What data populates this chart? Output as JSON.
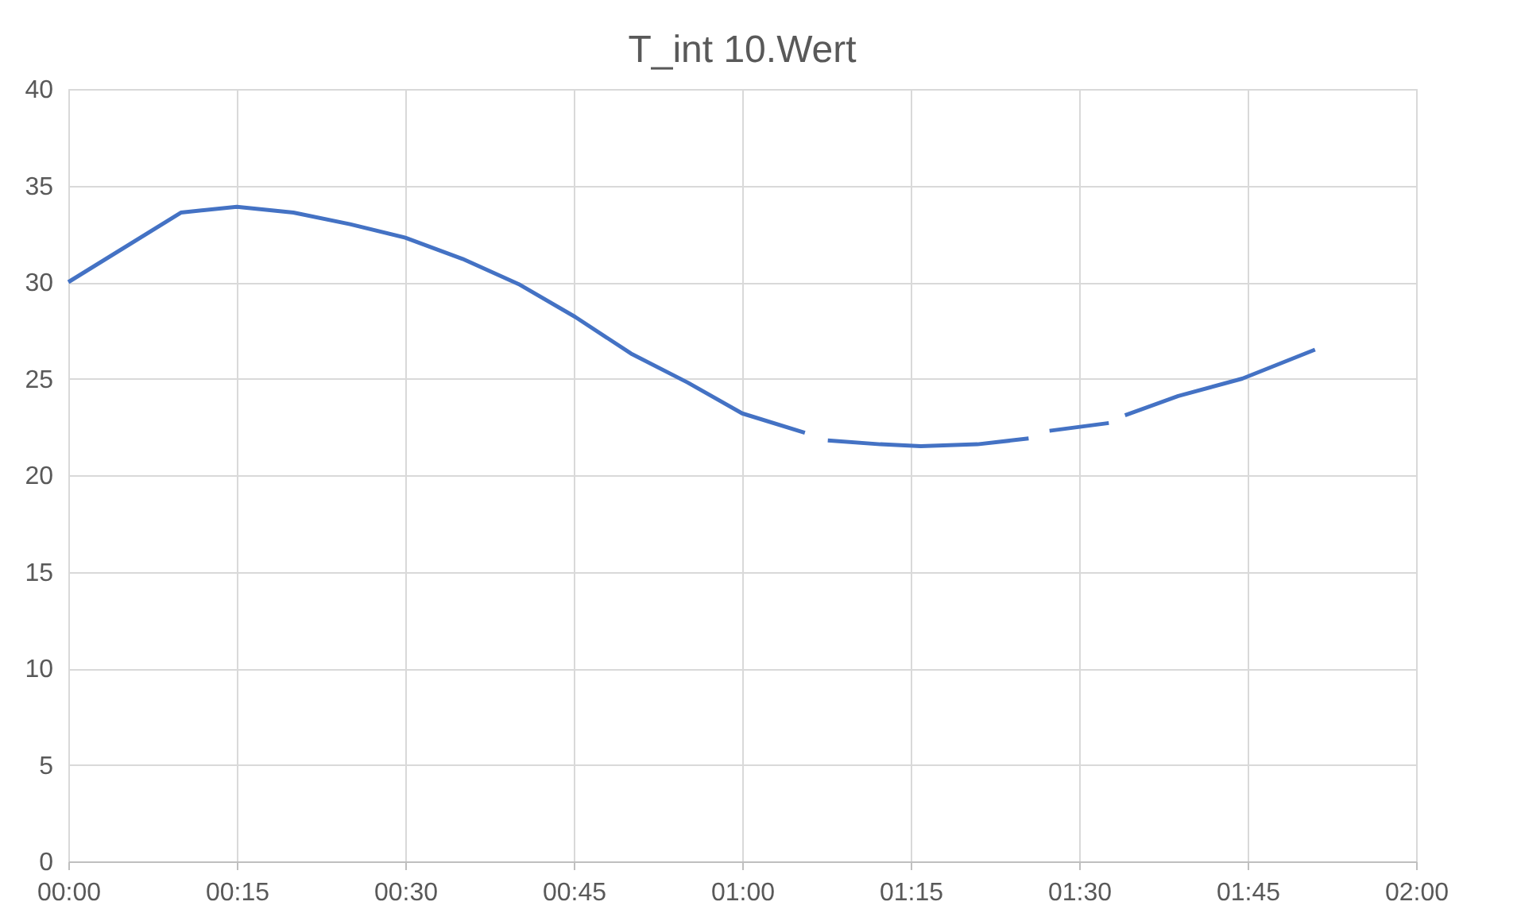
{
  "chart_data": {
    "type": "line",
    "title": "T_int 10.Wert",
    "x": [
      0,
      0.167,
      0.25,
      0.334,
      0.418,
      0.5,
      0.585,
      0.668,
      0.752,
      0.835,
      0.919,
      1.0,
      1.093,
      1.11,
      1.127,
      1.205,
      1.265,
      1.349,
      1.425,
      1.44,
      1.456,
      1.544,
      1.555,
      1.568,
      1.647,
      1.742,
      1.85
    ],
    "series": [
      {
        "color": "#4472c4",
        "values": [
          30,
          33.6,
          33.9,
          33.6,
          33.0,
          32.3,
          31.2,
          29.9,
          28.2,
          26.3,
          24.8,
          23.2,
          22.2,
          null,
          21.8,
          21.6,
          21.5,
          21.6,
          21.9,
          null,
          22.3,
          22.7,
          null,
          23.1,
          24.1,
          25.0,
          26.5
        ]
      }
    ],
    "xlim": [
      0,
      2
    ],
    "xticks": [
      {
        "value": 0,
        "label": "00:00"
      },
      {
        "value": 0.25,
        "label": "00:15"
      },
      {
        "value": 0.5,
        "label": "00:30"
      },
      {
        "value": 0.75,
        "label": "00:45"
      },
      {
        "value": 1,
        "label": "01:00"
      },
      {
        "value": 1.25,
        "label": "01:15"
      },
      {
        "value": 1.5,
        "label": "01:30"
      },
      {
        "value": 1.75,
        "label": "01:45"
      },
      {
        "value": 2,
        "label": "02:00"
      }
    ],
    "ylim": [
      0,
      40
    ],
    "yticks": [
      0,
      5,
      10,
      15,
      20,
      25,
      30,
      35,
      40
    ],
    "grid": true,
    "marker": "none",
    "line_style": "solid"
  }
}
